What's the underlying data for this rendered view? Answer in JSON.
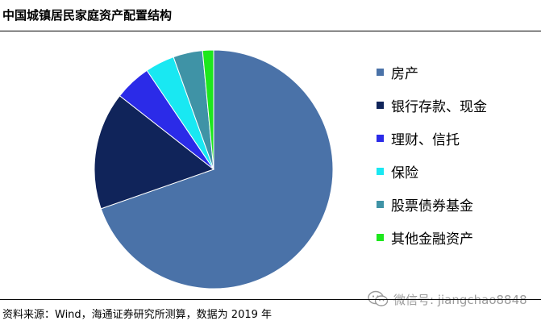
{
  "header": {
    "title": "中国城镇居民家庭资产配置结构"
  },
  "chart_data": {
    "type": "pie",
    "title": "中国城镇居民家庭资产配置结构",
    "start_angle_deg": 0,
    "direction": "clockwise",
    "slices": [
      {
        "label": "房产",
        "value": 70,
        "color": "#4a72a8"
      },
      {
        "label": "银行存款、现金",
        "value": 16,
        "color": "#10245a"
      },
      {
        "label": "理财、信托",
        "value": 5,
        "color": "#2b2be8"
      },
      {
        "label": "保险",
        "value": 4,
        "color": "#19e8f2"
      },
      {
        "label": "股票债券基金",
        "value": 4,
        "color": "#3f93a6"
      },
      {
        "label": "其他金融资产",
        "value": 1.5,
        "color": "#1de81d"
      }
    ],
    "legend_position": "right"
  },
  "watermark": {
    "text": "微信号: jiangchao8848",
    "icon": "wechat-icon"
  },
  "footer": {
    "source": "资料来源：Wind，海通证券研究所测算，数据为 2019 年"
  }
}
